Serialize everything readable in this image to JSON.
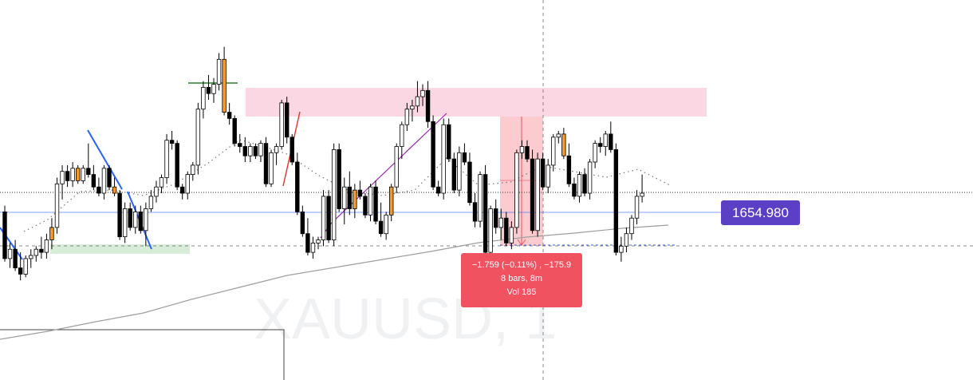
{
  "chart_data": {
    "type": "candlestick",
    "symbol": "XAUUSD",
    "watermark": "XAUUSD, 1",
    "current_price": "1654.980",
    "colors": {
      "up_candle": "#ffffff",
      "down_candle": "#000000",
      "highlight_candle": "#f59a2a",
      "price_line": "#2962ff",
      "price_tag": "#5b3fc4",
      "zone": "#f8bbd0",
      "support_zone": "#c8e6c9",
      "measure": "#f1525f",
      "moving_average": "#9e9e9e",
      "trendline_blue": "#2962ff",
      "trendline_red": "#e53935",
      "trendline_purple": "#9c27b0",
      "trendline_green": "#2e7d32"
    },
    "measurement": {
      "line1": "−1.759 (−0.11%) , −175.9",
      "line2": "8 bars, 8m",
      "line3": "Vol 185"
    },
    "candles": [
      {
        "o": 1655.4,
        "h": 1655.6,
        "l": 1653.8,
        "c": 1653.9
      },
      {
        "o": 1653.9,
        "h": 1654.4,
        "l": 1653.6,
        "c": 1654.2
      },
      {
        "o": 1654.2,
        "h": 1654.5,
        "l": 1653.5,
        "c": 1653.6
      },
      {
        "o": 1653.6,
        "h": 1654.1,
        "l": 1653.2,
        "c": 1653.4
      },
      {
        "o": 1653.4,
        "h": 1654.0,
        "l": 1653.3,
        "c": 1653.9
      },
      {
        "o": 1653.9,
        "h": 1654.2,
        "l": 1653.6,
        "c": 1654.0
      },
      {
        "o": 1654.0,
        "h": 1654.3,
        "l": 1653.8,
        "c": 1654.2
      },
      {
        "o": 1654.2,
        "h": 1654.6,
        "l": 1653.9,
        "c": 1654.1
      },
      {
        "o": 1654.1,
        "h": 1654.7,
        "l": 1653.9,
        "c": 1654.5
      },
      {
        "o": 1654.5,
        "h": 1655.2,
        "l": 1654.2,
        "c": 1654.9,
        "hl": true
      },
      {
        "o": 1654.9,
        "h": 1656.5,
        "l": 1654.7,
        "c": 1656.3
      },
      {
        "o": 1656.3,
        "h": 1656.9,
        "l": 1655.8,
        "c": 1656.7
      },
      {
        "o": 1656.7,
        "h": 1656.9,
        "l": 1656.2,
        "c": 1656.4
      },
      {
        "o": 1656.4,
        "h": 1657.0,
        "l": 1656.2,
        "c": 1656.8
      },
      {
        "o": 1656.8,
        "h": 1656.9,
        "l": 1656.3,
        "c": 1656.4,
        "hl": true
      },
      {
        "o": 1656.4,
        "h": 1656.9,
        "l": 1656.3,
        "c": 1656.8
      },
      {
        "o": 1656.8,
        "h": 1657.6,
        "l": 1656.5,
        "c": 1656.6
      },
      {
        "o": 1656.6,
        "h": 1656.9,
        "l": 1656.1,
        "c": 1656.2
      },
      {
        "o": 1656.2,
        "h": 1656.5,
        "l": 1655.9,
        "c": 1656.0
      },
      {
        "o": 1656.0,
        "h": 1656.9,
        "l": 1655.8,
        "c": 1656.8
      },
      {
        "o": 1656.8,
        "h": 1656.9,
        "l": 1656.1,
        "c": 1656.2
      },
      {
        "o": 1656.2,
        "h": 1656.5,
        "l": 1655.9,
        "c": 1656.0,
        "hl": true
      },
      {
        "o": 1656.0,
        "h": 1656.1,
        "l": 1654.5,
        "c": 1654.6
      },
      {
        "o": 1654.6,
        "h": 1655.7,
        "l": 1654.4,
        "c": 1655.5
      },
      {
        "o": 1655.5,
        "h": 1655.7,
        "l": 1654.8,
        "c": 1654.9
      },
      {
        "o": 1654.9,
        "h": 1655.6,
        "l": 1654.7,
        "c": 1655.4
      },
      {
        "o": 1655.4,
        "h": 1655.6,
        "l": 1654.7,
        "c": 1654.8
      },
      {
        "o": 1654.8,
        "h": 1655.7,
        "l": 1654.3,
        "c": 1655.5
      },
      {
        "o": 1655.5,
        "h": 1656.1,
        "l": 1655.4,
        "c": 1655.9
      },
      {
        "o": 1655.9,
        "h": 1656.4,
        "l": 1655.7,
        "c": 1656.2
      },
      {
        "o": 1656.2,
        "h": 1656.6,
        "l": 1656.0,
        "c": 1656.5
      },
      {
        "o": 1656.5,
        "h": 1657.9,
        "l": 1656.3,
        "c": 1657.7
      },
      {
        "o": 1657.7,
        "h": 1658.0,
        "l": 1657.4,
        "c": 1657.6
      },
      {
        "o": 1657.6,
        "h": 1657.7,
        "l": 1656.1,
        "c": 1656.2
      },
      {
        "o": 1656.2,
        "h": 1656.3,
        "l": 1655.8,
        "c": 1656.0
      },
      {
        "o": 1656.0,
        "h": 1656.7,
        "l": 1655.8,
        "c": 1656.6
      },
      {
        "o": 1656.6,
        "h": 1657.0,
        "l": 1656.4,
        "c": 1656.9
      },
      {
        "o": 1656.9,
        "h": 1658.9,
        "l": 1656.6,
        "c": 1658.7
      },
      {
        "o": 1658.7,
        "h": 1659.6,
        "l": 1658.4,
        "c": 1659.4
      },
      {
        "o": 1659.4,
        "h": 1659.8,
        "l": 1659.0,
        "c": 1659.2
      },
      {
        "o": 1659.2,
        "h": 1659.7,
        "l": 1658.9,
        "c": 1659.5
      },
      {
        "o": 1659.5,
        "h": 1660.5,
        "l": 1659.3,
        "c": 1660.3
      },
      {
        "o": 1660.3,
        "h": 1660.7,
        "l": 1658.5,
        "c": 1658.6,
        "hl": true
      },
      {
        "o": 1658.6,
        "h": 1658.9,
        "l": 1658.2,
        "c": 1658.4
      },
      {
        "o": 1658.4,
        "h": 1658.5,
        "l": 1657.5,
        "c": 1657.6
      },
      {
        "o": 1657.6,
        "h": 1657.9,
        "l": 1657.3,
        "c": 1657.5
      },
      {
        "o": 1657.5,
        "h": 1657.8,
        "l": 1657.0,
        "c": 1657.2
      },
      {
        "o": 1657.2,
        "h": 1657.6,
        "l": 1657.0,
        "c": 1657.5
      },
      {
        "o": 1657.5,
        "h": 1657.6,
        "l": 1657.1,
        "c": 1657.2
      },
      {
        "o": 1657.2,
        "h": 1657.7,
        "l": 1657.0,
        "c": 1657.6
      },
      {
        "o": 1657.6,
        "h": 1657.8,
        "l": 1656.2,
        "c": 1656.3
      },
      {
        "o": 1656.3,
        "h": 1657.4,
        "l": 1656.2,
        "c": 1657.3
      },
      {
        "o": 1657.3,
        "h": 1657.6,
        "l": 1656.9,
        "c": 1657.5
      },
      {
        "o": 1657.5,
        "h": 1659.0,
        "l": 1657.4,
        "c": 1658.9
      },
      {
        "o": 1658.9,
        "h": 1659.1,
        "l": 1657.6,
        "c": 1657.8
      },
      {
        "o": 1657.8,
        "h": 1657.9,
        "l": 1656.9,
        "c": 1657.0
      },
      {
        "o": 1657.0,
        "h": 1657.3,
        "l": 1655.3,
        "c": 1655.4
      },
      {
        "o": 1655.4,
        "h": 1655.6,
        "l": 1654.6,
        "c": 1654.7
      },
      {
        "o": 1654.7,
        "h": 1655.2,
        "l": 1654.0,
        "c": 1654.1
      },
      {
        "o": 1654.1,
        "h": 1654.6,
        "l": 1653.9,
        "c": 1654.4
      },
      {
        "o": 1654.4,
        "h": 1654.6,
        "l": 1654.2,
        "c": 1654.5
      },
      {
        "o": 1654.5,
        "h": 1656.1,
        "l": 1654.3,
        "c": 1655.9
      },
      {
        "o": 1655.9,
        "h": 1656.1,
        "l": 1654.4,
        "c": 1654.5
      },
      {
        "o": 1654.5,
        "h": 1657.6,
        "l": 1654.3,
        "c": 1657.4
      },
      {
        "o": 1657.4,
        "h": 1657.6,
        "l": 1655.4,
        "c": 1655.5
      },
      {
        "o": 1655.5,
        "h": 1656.5,
        "l": 1655.0,
        "c": 1656.2
      },
      {
        "o": 1656.2,
        "h": 1656.7,
        "l": 1655.3,
        "c": 1655.5
      },
      {
        "o": 1655.5,
        "h": 1656.3,
        "l": 1655.2,
        "c": 1656.1,
        "hl": true
      },
      {
        "o": 1656.1,
        "h": 1656.4,
        "l": 1655.8,
        "c": 1655.9
      },
      {
        "o": 1655.9,
        "h": 1656.0,
        "l": 1655.2,
        "c": 1655.3
      },
      {
        "o": 1655.3,
        "h": 1656.3,
        "l": 1655.1,
        "c": 1656.2
      },
      {
        "o": 1656.2,
        "h": 1656.4,
        "l": 1655.0,
        "c": 1655.1
      },
      {
        "o": 1655.1,
        "h": 1655.7,
        "l": 1654.6,
        "c": 1654.7
      },
      {
        "o": 1654.7,
        "h": 1655.4,
        "l": 1654.5,
        "c": 1655.3
      },
      {
        "o": 1655.3,
        "h": 1656.3,
        "l": 1655.1,
        "c": 1656.2,
        "hl": true
      },
      {
        "o": 1656.2,
        "h": 1657.6,
        "l": 1656.0,
        "c": 1657.5
      },
      {
        "o": 1657.5,
        "h": 1658.3,
        "l": 1657.1,
        "c": 1658.2
      },
      {
        "o": 1658.2,
        "h": 1658.9,
        "l": 1658.0,
        "c": 1658.7
      },
      {
        "o": 1658.7,
        "h": 1659.0,
        "l": 1658.3,
        "c": 1658.8
      },
      {
        "o": 1658.8,
        "h": 1659.6,
        "l": 1658.6,
        "c": 1659.1
      },
      {
        "o": 1659.1,
        "h": 1659.5,
        "l": 1658.8,
        "c": 1659.3
      },
      {
        "o": 1659.3,
        "h": 1659.6,
        "l": 1658.1,
        "c": 1658.3
      },
      {
        "o": 1658.3,
        "h": 1658.5,
        "l": 1656.1,
        "c": 1656.2
      },
      {
        "o": 1656.2,
        "h": 1656.4,
        "l": 1655.9,
        "c": 1656.0
      },
      {
        "o": 1656.0,
        "h": 1658.4,
        "l": 1655.8,
        "c": 1658.2
      },
      {
        "o": 1658.2,
        "h": 1658.4,
        "l": 1657.0,
        "c": 1657.1
      },
      {
        "o": 1657.1,
        "h": 1657.3,
        "l": 1656.0,
        "c": 1656.1
      },
      {
        "o": 1656.1,
        "h": 1657.5,
        "l": 1655.9,
        "c": 1657.3
      },
      {
        "o": 1657.3,
        "h": 1657.6,
        "l": 1656.9,
        "c": 1657.0
      },
      {
        "o": 1657.0,
        "h": 1657.3,
        "l": 1655.6,
        "c": 1655.7
      },
      {
        "o": 1655.7,
        "h": 1656.0,
        "l": 1654.9,
        "c": 1655.1
      },
      {
        "o": 1655.1,
        "h": 1656.7,
        "l": 1654.9,
        "c": 1656.6
      },
      {
        "o": 1656.6,
        "h": 1656.9,
        "l": 1654.0,
        "c": 1654.1
      },
      {
        "o": 1654.1,
        "h": 1655.6,
        "l": 1653.9,
        "c": 1655.5
      },
      {
        "o": 1655.5,
        "h": 1655.8,
        "l": 1654.7,
        "c": 1654.9
      },
      {
        "o": 1654.9,
        "h": 1655.5,
        "l": 1654.5,
        "c": 1655.2
      },
      {
        "o": 1655.2,
        "h": 1655.4,
        "l": 1654.3,
        "c": 1654.4
      },
      {
        "o": 1654.4,
        "h": 1655.1,
        "l": 1654.2,
        "c": 1654.9
      },
      {
        "o": 1654.9,
        "h": 1657.4,
        "l": 1654.7,
        "c": 1657.3
      },
      {
        "o": 1657.3,
        "h": 1657.7,
        "l": 1657.1,
        "c": 1657.5
      },
      {
        "o": 1657.5,
        "h": 1657.7,
        "l": 1657.0,
        "c": 1657.1
      },
      {
        "o": 1657.1,
        "h": 1657.4,
        "l": 1654.7,
        "c": 1654.8
      },
      {
        "o": 1654.8,
        "h": 1657.3,
        "l": 1654.6,
        "c": 1657.1
      },
      {
        "o": 1657.1,
        "h": 1657.3,
        "l": 1656.1,
        "c": 1656.2
      },
      {
        "o": 1656.2,
        "h": 1657.1,
        "l": 1656.0,
        "c": 1656.9
      },
      {
        "o": 1656.9,
        "h": 1657.9,
        "l": 1656.7,
        "c": 1657.8
      },
      {
        "o": 1657.8,
        "h": 1658.0,
        "l": 1657.6,
        "c": 1657.9
      },
      {
        "o": 1657.9,
        "h": 1658.1,
        "l": 1657.1,
        "c": 1657.2,
        "hl": true
      },
      {
        "o": 1657.2,
        "h": 1657.6,
        "l": 1656.2,
        "c": 1656.3
      },
      {
        "o": 1656.3,
        "h": 1656.5,
        "l": 1655.8,
        "c": 1655.9
      },
      {
        "o": 1655.9,
        "h": 1656.7,
        "l": 1655.7,
        "c": 1656.6
      },
      {
        "o": 1656.6,
        "h": 1656.8,
        "l": 1655.9,
        "c": 1656.0
      },
      {
        "o": 1656.0,
        "h": 1657.1,
        "l": 1655.8,
        "c": 1657.0
      },
      {
        "o": 1657.0,
        "h": 1657.7,
        "l": 1656.8,
        "c": 1657.6
      },
      {
        "o": 1657.6,
        "h": 1657.8,
        "l": 1657.3,
        "c": 1657.5
      },
      {
        "o": 1657.5,
        "h": 1658.0,
        "l": 1657.2,
        "c": 1657.9
      },
      {
        "o": 1657.9,
        "h": 1658.3,
        "l": 1657.3,
        "c": 1657.4
      },
      {
        "o": 1657.4,
        "h": 1657.6,
        "l": 1654.0,
        "c": 1654.1
      },
      {
        "o": 1654.1,
        "h": 1654.6,
        "l": 1653.8,
        "c": 1654.3
      },
      {
        "o": 1654.3,
        "h": 1654.9,
        "l": 1654.1,
        "c": 1654.7
      },
      {
        "o": 1654.7,
        "h": 1655.3,
        "l": 1654.5,
        "c": 1655.2
      },
      {
        "o": 1655.2,
        "h": 1656.1,
        "l": 1655.0,
        "c": 1655.9
      },
      {
        "o": 1655.9,
        "h": 1656.6,
        "l": 1655.7,
        "c": 1656.0
      }
    ]
  }
}
